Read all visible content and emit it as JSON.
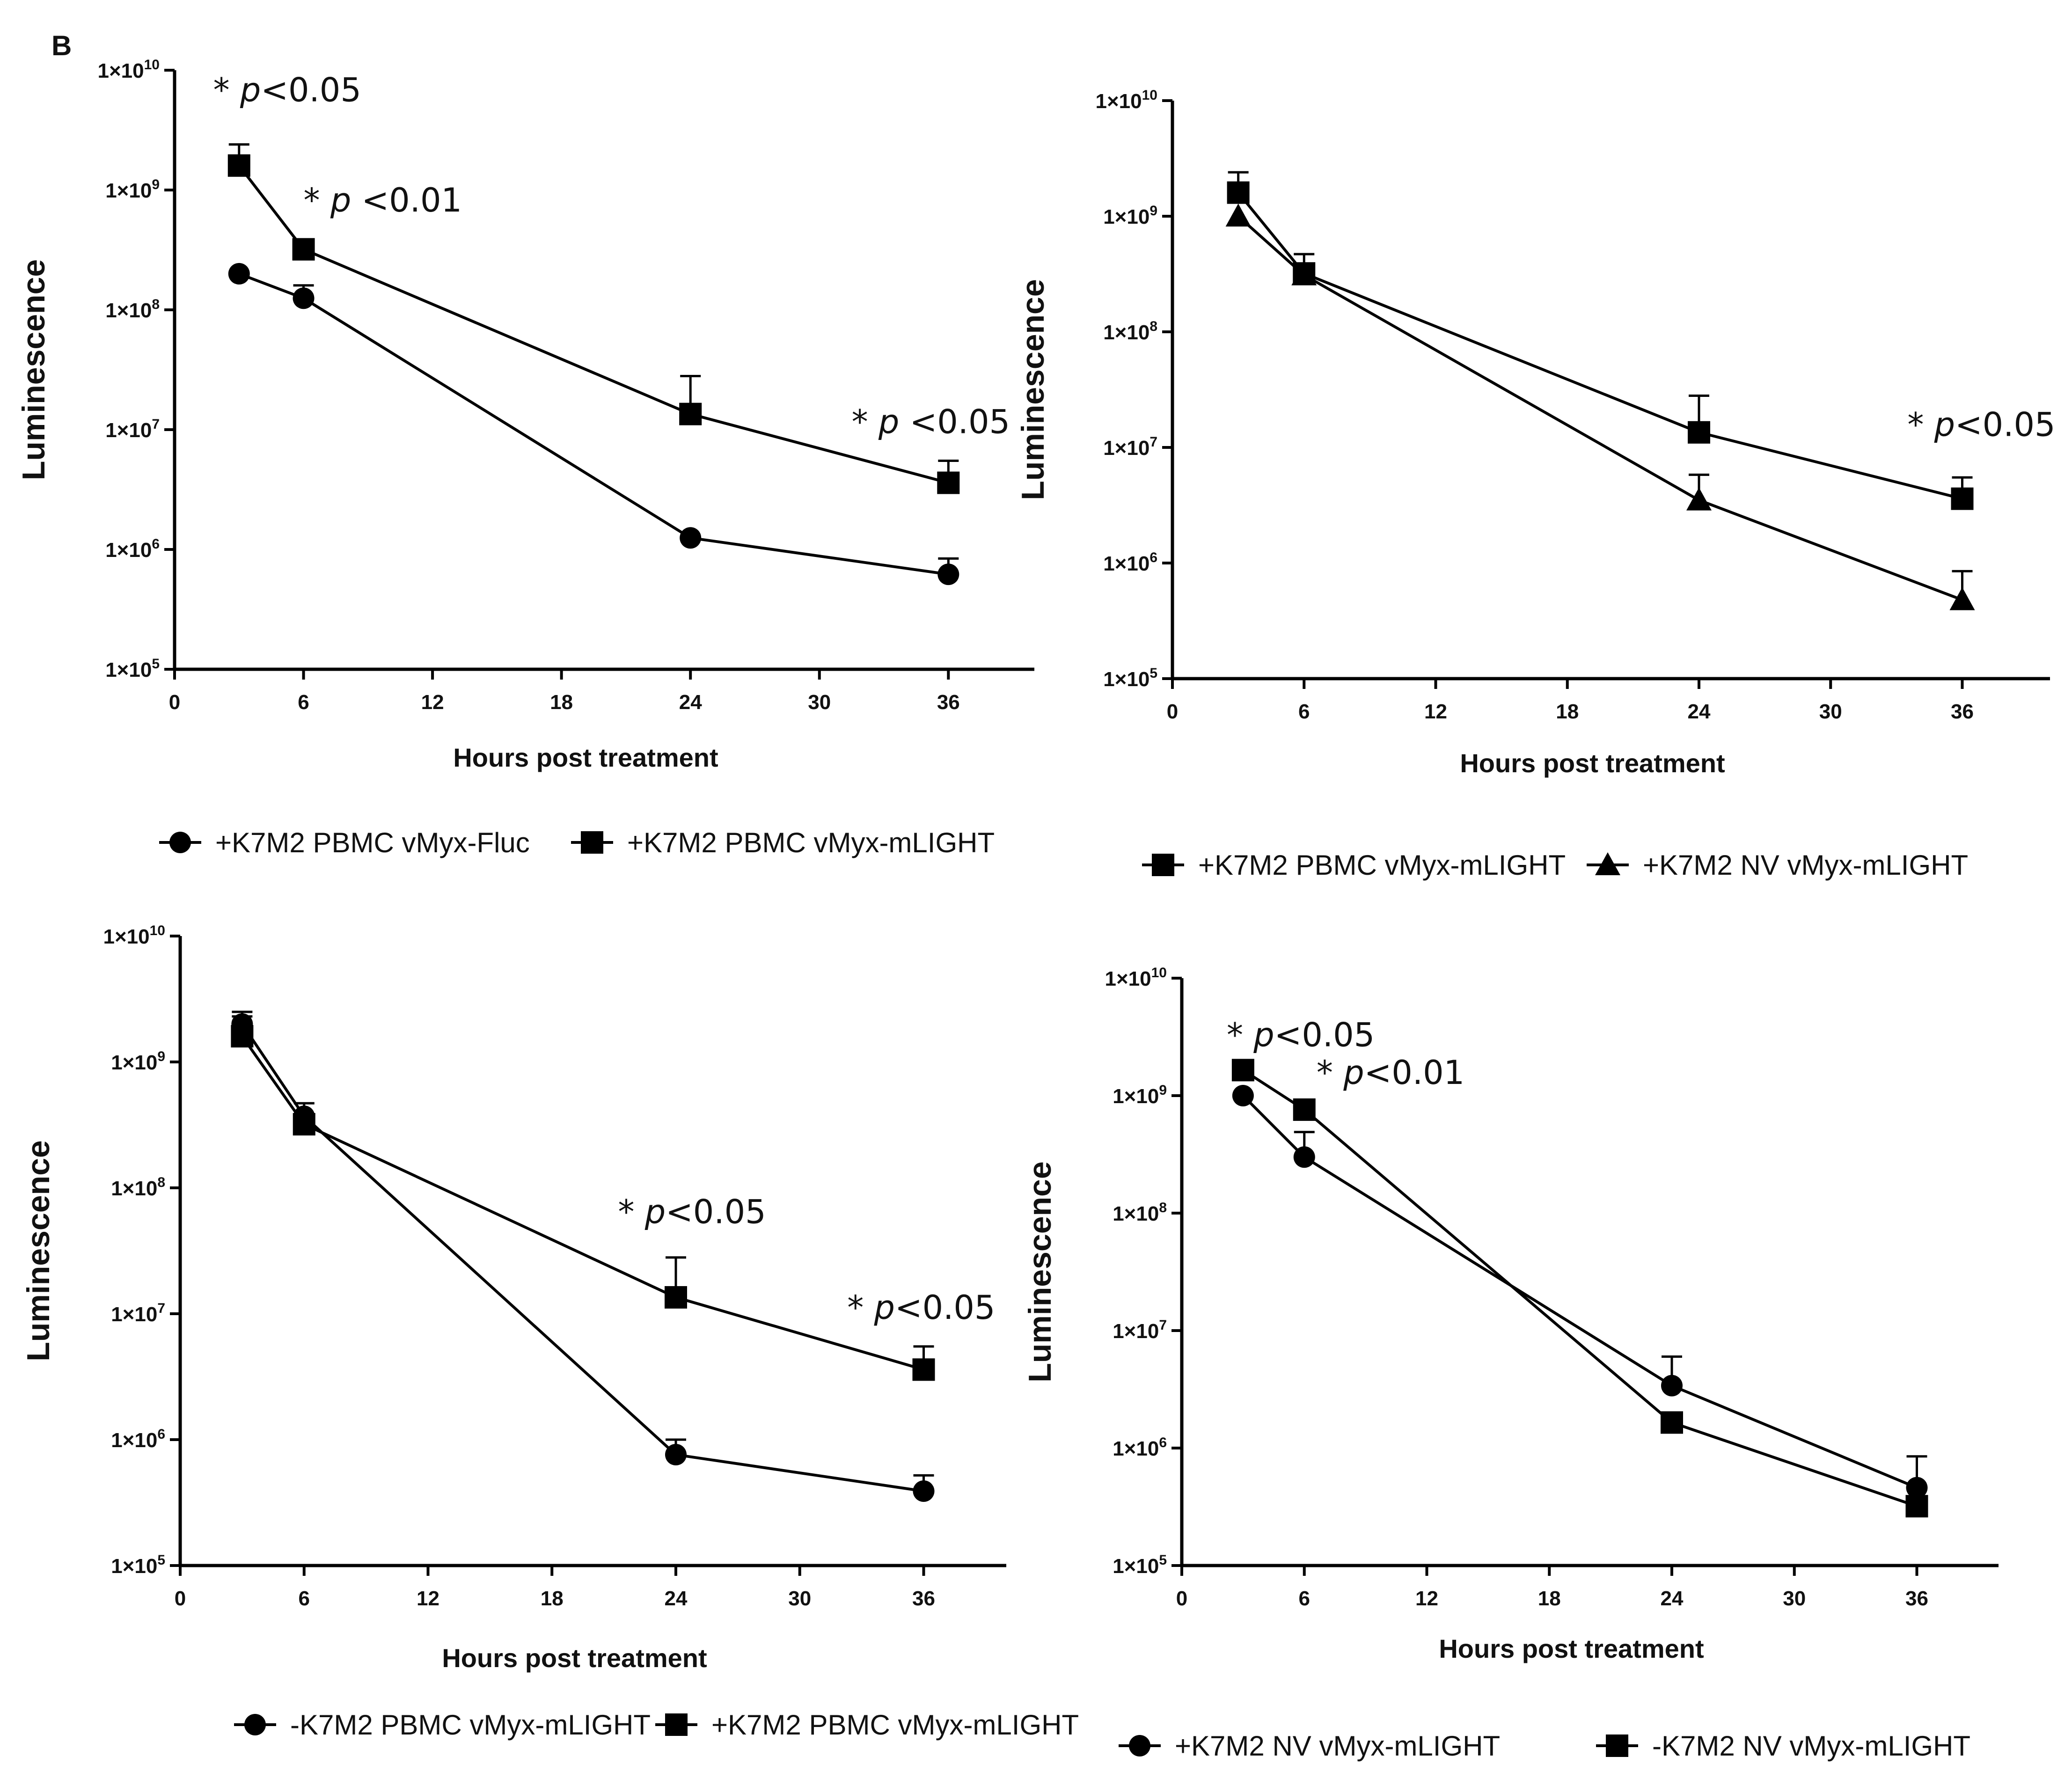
{
  "panel_label": "B",
  "chart_data": [
    {
      "type": "line",
      "title": "",
      "xlabel": "Hours post treatment",
      "ylabel": "Luminescence",
      "xlim": [
        0,
        40
      ],
      "xticks": [
        0,
        6,
        12,
        18,
        24,
        30,
        36
      ],
      "ylim_log10": [
        5,
        10
      ],
      "yscale": "log",
      "yticks": [
        {
          "base": "1×10",
          "exp": "5"
        },
        {
          "base": "1×10",
          "exp": "6"
        },
        {
          "base": "1×10",
          "exp": "7"
        },
        {
          "base": "1×10",
          "exp": "8"
        },
        {
          "base": "1×10",
          "exp": "9"
        },
        {
          "base": "1×10",
          "exp": "10"
        }
      ],
      "series": [
        {
          "name": "+K7M2 PBMC vMyx-Fluc",
          "marker": "circle",
          "x": [
            3,
            6,
            24,
            36
          ],
          "y": [
            200000000,
            125000000,
            1250000,
            620000
          ],
          "err": [
            null,
            160000000,
            null,
            840000
          ]
        },
        {
          "name": "+K7M2 PBMC vMyx-mLIGHT",
          "marker": "square",
          "x": [
            3,
            6,
            24,
            36
          ],
          "y": [
            1600000000,
            320000000,
            13500000,
            3600000
          ],
          "err": [
            2400000000,
            null,
            28000000,
            5500000
          ]
        }
      ],
      "annotations": [
        {
          "star": "*",
          "p": "p",
          "op": "<0.05",
          "x": 1.8,
          "y_log10": 9.74
        },
        {
          "star": "*",
          "p": "p",
          "op": " <0.01",
          "x": 6.0,
          "y_log10": 8.82
        },
        {
          "star": "*",
          "p": "p",
          "op": " <0.05",
          "x": 31.5,
          "y_log10": 6.97
        }
      ]
    },
    {
      "type": "line",
      "title": "",
      "xlabel": "Hours post treatment",
      "ylabel": "Luminescence",
      "xlim": [
        0,
        40
      ],
      "xticks": [
        0,
        6,
        12,
        18,
        24,
        30,
        36
      ],
      "ylim_log10": [
        5,
        10
      ],
      "yscale": "log",
      "yticks": [
        {
          "base": "1×10",
          "exp": "5"
        },
        {
          "base": "1×10",
          "exp": "6"
        },
        {
          "base": "1×10",
          "exp": "7"
        },
        {
          "base": "1×10",
          "exp": "8"
        },
        {
          "base": "1×10",
          "exp": "9"
        },
        {
          "base": "1×10",
          "exp": "10"
        }
      ],
      "series": [
        {
          "name": "+K7M2 PBMC vMyx-mLIGHT",
          "marker": "square",
          "x": [
            3,
            6,
            24,
            36
          ],
          "y": [
            1600000000,
            320000000,
            13500000,
            3600000
          ],
          "err": [
            2400000000,
            470000000,
            28000000,
            5500000
          ]
        },
        {
          "name": "+K7M2 NV vMyx-mLIGHT",
          "marker": "triangle",
          "x": [
            3,
            6,
            24,
            36
          ],
          "y": [
            1000000000,
            310000000,
            3500000,
            480000
          ],
          "err": [
            null,
            null,
            5800000,
            850000
          ]
        }
      ],
      "annotations": [
        {
          "star": "*",
          "p": "p",
          "op": "<0.05",
          "x": 33.5,
          "y_log10": 7.1
        }
      ]
    },
    {
      "type": "line",
      "title": "",
      "xlabel": "Hours post treatment",
      "ylabel": "Luminescence",
      "xlim": [
        0,
        40
      ],
      "xticks": [
        0,
        6,
        12,
        18,
        24,
        30,
        36
      ],
      "ylim_log10": [
        5,
        10
      ],
      "yscale": "log",
      "yticks": [
        {
          "base": "1×10",
          "exp": "5"
        },
        {
          "base": "1×10",
          "exp": "6"
        },
        {
          "base": "1×10",
          "exp": "7"
        },
        {
          "base": "1×10",
          "exp": "8"
        },
        {
          "base": "1×10",
          "exp": "9"
        },
        {
          "base": "1×10",
          "exp": "10"
        }
      ],
      "series": [
        {
          "name": "-K7M2 PBMC vMyx-mLIGHT",
          "marker": "circle",
          "x": [
            3,
            6,
            24,
            36
          ],
          "y": [
            2000000000,
            370000000,
            760000,
            390000
          ],
          "err": [
            2500000000,
            470000000,
            1000000,
            520000
          ]
        },
        {
          "name": "+K7M2 PBMC vMyx-mLIGHT",
          "marker": "square",
          "x": [
            3,
            6,
            24,
            36
          ],
          "y": [
            1600000000,
            320000000,
            13500000,
            3600000
          ],
          "err": [
            2300000000,
            null,
            28000000,
            5500000
          ]
        }
      ],
      "annotations": [
        {
          "star": "*",
          "p": "p",
          "op": "<0.05",
          "x": 21.2,
          "y_log10": 7.72
        },
        {
          "star": "*",
          "p": "p",
          "op": "<0.05",
          "x": 32.3,
          "y_log10": 6.96
        }
      ]
    },
    {
      "type": "line",
      "title": "",
      "xlabel": "Hours post treatment",
      "ylabel": "Luminescence",
      "xlim": [
        0,
        40
      ],
      "xticks": [
        0,
        6,
        12,
        18,
        24,
        30,
        36
      ],
      "ylim_log10": [
        5,
        10
      ],
      "yscale": "log",
      "yticks": [
        {
          "base": "1×10",
          "exp": "5"
        },
        {
          "base": "1×10",
          "exp": "6"
        },
        {
          "base": "1×10",
          "exp": "7"
        },
        {
          "base": "1×10",
          "exp": "8"
        },
        {
          "base": "1×10",
          "exp": "9"
        },
        {
          "base": "1×10",
          "exp": "10"
        }
      ],
      "series": [
        {
          "name": "+K7M2 NV vMyx-mLIGHT",
          "marker": "circle",
          "x": [
            3,
            6,
            24,
            36
          ],
          "y": [
            1000000000,
            300000000,
            3400000,
            460000
          ],
          "err": [
            null,
            490000000,
            6000000,
            850000
          ]
        },
        {
          "name": "-K7M2 NV vMyx-mLIGHT",
          "marker": "square",
          "x": [
            3,
            6,
            24,
            36
          ],
          "y": [
            1650000000,
            760000000,
            1650000,
            320000
          ],
          "err": [
            null,
            null,
            null,
            null
          ]
        }
      ],
      "annotations": [
        {
          "star": "*",
          "p": "p",
          "op": "<0.05",
          "x": 2.2,
          "y_log10": 9.42
        },
        {
          "star": "*",
          "p": "p",
          "op": "<0.01",
          "x": 6.6,
          "y_log10": 9.1
        }
      ]
    }
  ]
}
